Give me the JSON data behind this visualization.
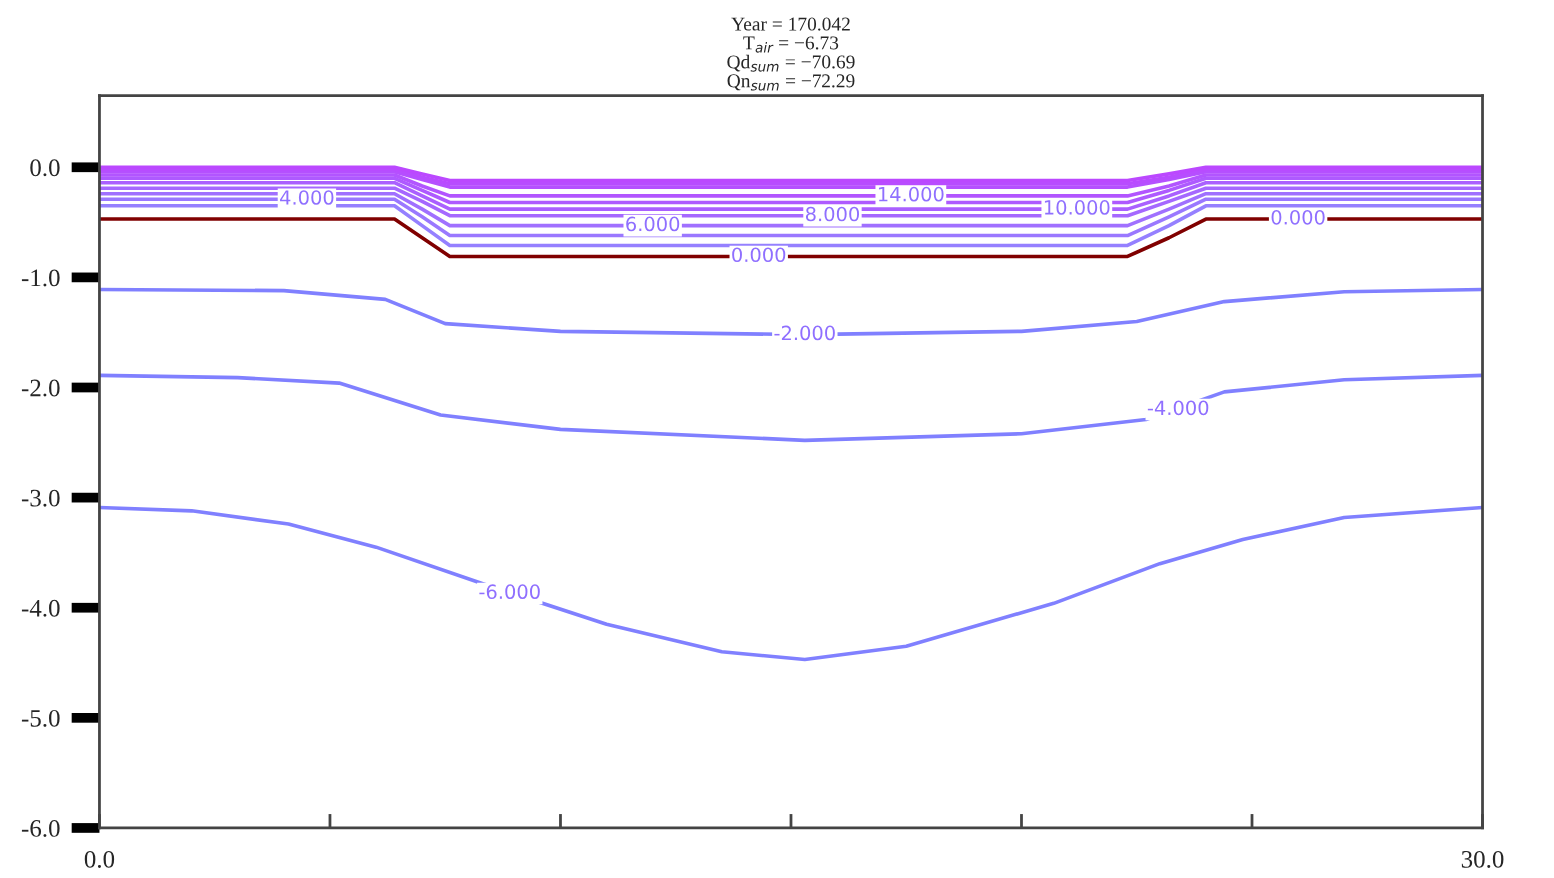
{
  "chart_data": {
    "type": "line",
    "title": "Year = 170.042\nT$_{air}$ = −6.73\nQd$_{sum}$ = −70.69\nQn$_{sum}$ = −72.29",
    "xlim": [
      0,
      30
    ],
    "ylim": [
      -6,
      0.65
    ],
    "xticks": [
      {
        "value": 0,
        "label": "0.0"
      },
      {
        "value": 5,
        "label": null
      },
      {
        "value": 10,
        "label": null
      },
      {
        "value": 15,
        "label": null
      },
      {
        "value": 20,
        "label": null
      },
      {
        "value": 25,
        "label": null
      },
      {
        "value": 30,
        "label": "30.0"
      }
    ],
    "yticks": [
      {
        "value": -6,
        "label": "-6.0"
      },
      {
        "value": -5,
        "label": "-5.0"
      },
      {
        "value": -4,
        "label": "-4.0"
      },
      {
        "value": -3,
        "label": "-3.0"
      },
      {
        "value": -2,
        "label": "-2.0"
      },
      {
        "value": -1,
        "label": "-1.0"
      },
      {
        "value": 0,
        "label": "0.0"
      }
    ],
    "grid": false,
    "legend": false,
    "marker": "none",
    "line_style": "solid",
    "series": [
      {
        "color": "#800000",
        "x": [
          0,
          6.4,
          7.0,
          7.6,
          22.3,
          23.2,
          24.0,
          30
        ],
        "values": [
          -0.47,
          -0.47,
          -0.64,
          -0.81,
          -0.81,
          -0.64,
          -0.47,
          -0.47
        ]
      },
      {
        "color": "#9580ff",
        "x": [
          0,
          6.4,
          7.0,
          7.6,
          22.3,
          23.2,
          24.0,
          30
        ],
        "values": [
          -0.35,
          -0.35,
          -0.53,
          -0.71,
          -0.71,
          -0.53,
          -0.35,
          -0.35
        ]
      },
      {
        "color": "#9a78ff",
        "x": [
          0,
          6.4,
          7.0,
          7.6,
          22.3,
          23.2,
          24.0,
          30
        ],
        "values": [
          -0.29,
          -0.29,
          -0.45,
          -0.62,
          -0.62,
          -0.45,
          -0.29,
          -0.29
        ]
      },
      {
        "color": "#a070ff",
        "x": [
          0,
          6.4,
          7.0,
          7.6,
          22.3,
          23.2,
          24.0,
          30
        ],
        "values": [
          -0.24,
          -0.24,
          -0.38,
          -0.53,
          -0.53,
          -0.38,
          -0.24,
          -0.24
        ]
      },
      {
        "color": "#a568ff",
        "x": [
          0,
          6.4,
          7.0,
          7.6,
          22.3,
          23.2,
          24.0,
          30
        ],
        "values": [
          -0.19,
          -0.19,
          -0.31,
          -0.44,
          -0.44,
          -0.31,
          -0.19,
          -0.19
        ]
      },
      {
        "color": "#aa60ff",
        "x": [
          0,
          6.4,
          7.0,
          7.6,
          22.3,
          23.2,
          24.0,
          30
        ],
        "values": [
          -0.14,
          -0.14,
          -0.26,
          -0.38,
          -0.38,
          -0.26,
          -0.14,
          -0.14
        ]
      },
      {
        "color": "#ae5aff",
        "x": [
          0,
          6.4,
          7.0,
          7.6,
          22.3,
          23.2,
          24.0,
          30
        ],
        "values": [
          -0.1,
          -0.1,
          -0.21,
          -0.32,
          -0.32,
          -0.21,
          -0.1,
          -0.1
        ]
      },
      {
        "color": "#b255ff",
        "x": [
          0,
          6.4,
          7.0,
          7.6,
          22.3,
          23.2,
          24.0,
          30
        ],
        "values": [
          -0.07,
          -0.07,
          -0.17,
          -0.26,
          -0.26,
          -0.17,
          -0.07,
          -0.07
        ]
      },
      {
        "color": "#b550ff",
        "x": [
          0,
          6.4,
          7.0,
          7.6,
          22.3,
          23.2,
          24.0,
          30
        ],
        "values": [
          -0.04,
          -0.04,
          -0.11,
          -0.18,
          -0.18,
          -0.11,
          -0.04,
          -0.04
        ]
      },
      {
        "color": "#b84cff",
        "x": [
          0,
          6.4,
          7.0,
          7.6,
          22.3,
          23.2,
          24.0,
          30
        ],
        "values": [
          -0.02,
          -0.02,
          -0.09,
          -0.15,
          -0.15,
          -0.09,
          -0.02,
          -0.02
        ]
      },
      {
        "color": "#bb48ff",
        "x": [
          0,
          6.4,
          7.0,
          7.6,
          22.3,
          23.2,
          24.0,
          30
        ],
        "values": [
          0.0,
          0.0,
          -0.06,
          -0.12,
          -0.12,
          -0.06,
          0.0,
          0.0
        ]
      },
      {
        "color": "#8080ff",
        "x": [
          0,
          4,
          6.2,
          7.5,
          10,
          15.3,
          20,
          22.5,
          24.4,
          27,
          30
        ],
        "values": [
          -1.11,
          -1.12,
          -1.2,
          -1.42,
          -1.49,
          -1.52,
          -1.49,
          -1.4,
          -1.22,
          -1.13,
          -1.11
        ]
      },
      {
        "color": "#8080ff",
        "x": [
          0,
          3,
          5.2,
          7.4,
          10,
          15.3,
          20,
          22.7,
          24.4,
          27,
          30
        ],
        "values": [
          -1.89,
          -1.91,
          -1.96,
          -2.25,
          -2.38,
          -2.48,
          -2.42,
          -2.29,
          -2.04,
          -1.93,
          -1.89
        ]
      },
      {
        "color": "#8080ff",
        "x": [
          0,
          2,
          4.1,
          6,
          8.3,
          11,
          13.5,
          15.3,
          17.5,
          20.7,
          23,
          24.8,
          27,
          30
        ],
        "values": [
          -3.09,
          -3.12,
          -3.24,
          -3.45,
          -3.78,
          -4.15,
          -4.4,
          -4.47,
          -4.35,
          -3.96,
          -3.6,
          -3.38,
          -3.18,
          -3.09
        ]
      }
    ],
    "annotations": [
      {
        "text": "0.000",
        "x": 14.3,
        "y": -0.81
      },
      {
        "text": "0.000",
        "x": 26,
        "y": -0.47
      },
      {
        "text": "4.000",
        "x": 4.5,
        "y": -0.29
      },
      {
        "text": "6.000",
        "x": 12,
        "y": -0.53
      },
      {
        "text": "8.000",
        "x": 15.9,
        "y": -0.44
      },
      {
        "text": "10.000",
        "x": 21.2,
        "y": -0.38
      },
      {
        "text": "14.000",
        "x": 17.6,
        "y": -0.26
      },
      {
        "text": "-2.000",
        "x": 15.3,
        "y": -1.52
      },
      {
        "text": "-4.000",
        "x": 23.4,
        "y": -2.2
      },
      {
        "text": "-6.000",
        "x": 8.9,
        "y": -3.87
      }
    ]
  }
}
